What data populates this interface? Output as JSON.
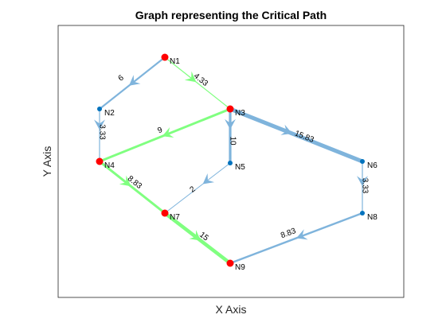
{
  "title": "Graph representing the Critical Path",
  "xlabel": "X Axis",
  "ylabel": "Y Axis",
  "colors": {
    "critical_edge": "#80ff80",
    "normal_edge": "#7fb4dc",
    "critical_node": "#ff0000",
    "normal_node": "#0072bd",
    "axes_box": "#262626"
  },
  "nodes": [
    {
      "id": "N1",
      "label": "N1",
      "critical": true
    },
    {
      "id": "N2",
      "label": "N2",
      "critical": false
    },
    {
      "id": "N3",
      "label": "N3",
      "critical": true
    },
    {
      "id": "N4",
      "label": "N4",
      "critical": true
    },
    {
      "id": "N5",
      "label": "N5",
      "critical": false
    },
    {
      "id": "N6",
      "label": "N6",
      "critical": false
    },
    {
      "id": "N7",
      "label": "N7",
      "critical": true
    },
    {
      "id": "N8",
      "label": "N8",
      "critical": false
    },
    {
      "id": "N9",
      "label": "N9",
      "critical": true
    }
  ],
  "edges": [
    {
      "from": "N1",
      "to": "N2",
      "weight": "6",
      "critical": false
    },
    {
      "from": "N1",
      "to": "N3",
      "weight": "4.33",
      "critical": true
    },
    {
      "from": "N2",
      "to": "N4",
      "weight": "3.33",
      "critical": false
    },
    {
      "from": "N3",
      "to": "N4",
      "weight": "9",
      "critical": true
    },
    {
      "from": "N3",
      "to": "N5",
      "weight": "10",
      "critical": false
    },
    {
      "from": "N3",
      "to": "N6",
      "weight": "15.83",
      "critical": false
    },
    {
      "from": "N4",
      "to": "N7",
      "weight": "8.83",
      "critical": true
    },
    {
      "from": "N5",
      "to": "N7",
      "weight": "2",
      "critical": false
    },
    {
      "from": "N6",
      "to": "N8",
      "weight": "3.33",
      "critical": false
    },
    {
      "from": "N7",
      "to": "N9",
      "weight": "15",
      "critical": true
    },
    {
      "from": "N8",
      "to": "N9",
      "weight": "8.83",
      "critical": false
    }
  ]
}
